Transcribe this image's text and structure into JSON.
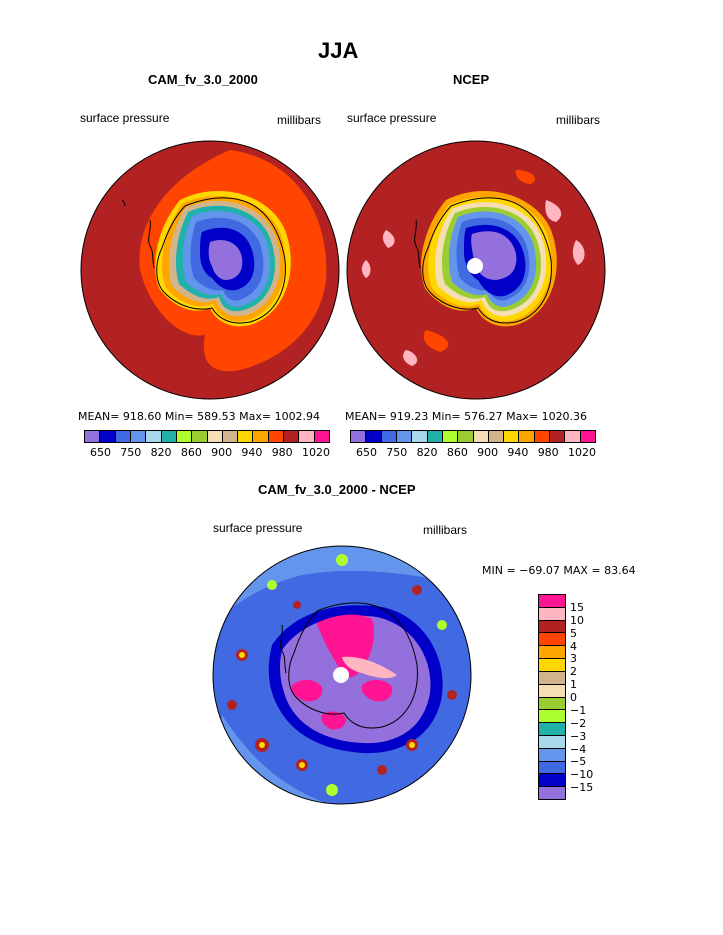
{
  "figure": {
    "title": "JJA",
    "panels": [
      {
        "id": "model",
        "title": "CAM_fv_3.0_2000",
        "variable": "surface pressure",
        "units": "millibars",
        "stats": {
          "mean": "918.60",
          "min": "589.53",
          "max": "1002.94"
        },
        "stats_text": "MEAN= 918.60   Min= 589.53   Max= 1002.94",
        "colorbar_labels": [
          "650",
          "750",
          "820",
          "860",
          "900",
          "940",
          "980",
          "1020"
        ]
      },
      {
        "id": "obs",
        "title": "NCEP",
        "variable": "surface pressure",
        "units": "millibars",
        "stats": {
          "mean": "919.23",
          "min": "576.27",
          "max": "1020.36"
        },
        "stats_text": "MEAN= 919.23   Min= 576.27   Max= 1020.36",
        "colorbar_labels": [
          "650",
          "750",
          "820",
          "860",
          "900",
          "940",
          "980",
          "1020"
        ]
      },
      {
        "id": "diff",
        "title": "CAM_fv_3.0_2000 - NCEP",
        "variable": "surface pressure",
        "units": "millibars",
        "stats": {
          "min": "-69.07",
          "max": "83.64"
        },
        "stats_text": "MIN = −69.07 MAX =   83.64",
        "colorbar_labels": [
          "15",
          "10",
          "5",
          "4",
          "3",
          "2",
          "1",
          "0",
          "−1",
          "−2",
          "−3",
          "−4",
          "−5",
          "−10",
          "−15"
        ]
      }
    ],
    "abs_palette": [
      "#9370db",
      "#0000c8",
      "#4169e1",
      "#6495ed",
      "#a8d8ea",
      "#20b2aa",
      "#adff2f",
      "#9acd32",
      "#f5deb3",
      "#d2b48c",
      "#ffd700",
      "#ffa500",
      "#ff4500",
      "#b22222",
      "#ffb6c1",
      "#ff1493"
    ],
    "diff_palette": [
      "#ff1493",
      "#ffb6c1",
      "#b22222",
      "#ff4500",
      "#ffa500",
      "#ffd700",
      "#d2b48c",
      "#f5deb3",
      "#9acd32",
      "#adff2f",
      "#20b2aa",
      "#a8d8ea",
      "#6495ed",
      "#4169e1",
      "#0000c8",
      "#9370db"
    ]
  }
}
